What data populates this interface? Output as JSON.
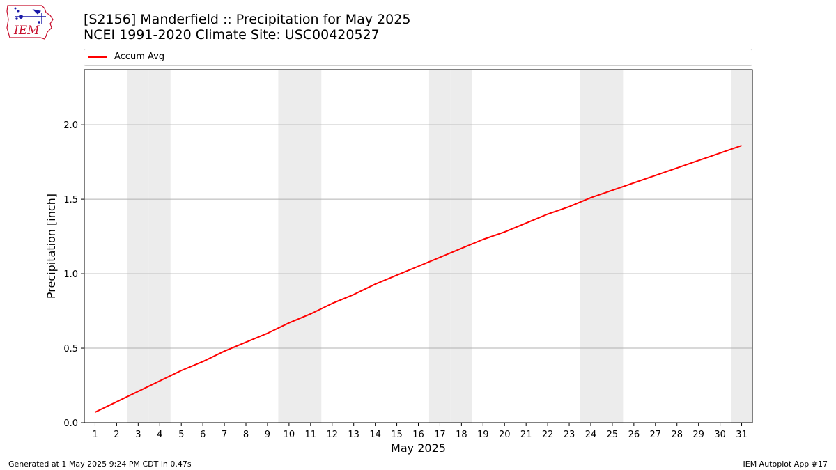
{
  "header": {
    "title_line1": "[S2156] Manderfield :: Precipitation for May 2025",
    "title_line2": "NCEI 1991-2020 Climate Site: USC00420527",
    "logo_text": "IEM"
  },
  "footer": {
    "left": "Generated at 1 May 2025 9:24 PM CDT in 0.47s",
    "right": "IEM Autoplot App #17"
  },
  "chart_data": {
    "type": "line",
    "xlabel": "May 2025",
    "ylabel": "Precipitation [inch]",
    "x": [
      1,
      2,
      3,
      4,
      5,
      6,
      7,
      8,
      9,
      10,
      11,
      12,
      13,
      14,
      15,
      16,
      17,
      18,
      19,
      20,
      21,
      22,
      23,
      24,
      25,
      26,
      27,
      28,
      29,
      30,
      31
    ],
    "xlim": [
      0.5,
      31.5
    ],
    "ylim": [
      0,
      2.37
    ],
    "yticks": [
      0.0,
      0.5,
      1.0,
      1.5,
      2.0
    ],
    "ytick_labels": [
      "0.0",
      "0.5",
      "1.0",
      "1.5",
      "2.0"
    ],
    "xtick_labels": [
      "1",
      "2",
      "3",
      "4",
      "5",
      "6",
      "7",
      "8",
      "9",
      "10",
      "11",
      "12",
      "13",
      "14",
      "15",
      "16",
      "17",
      "18",
      "19",
      "20",
      "21",
      "22",
      "23",
      "24",
      "25",
      "26",
      "27",
      "28",
      "29",
      "30",
      "31"
    ],
    "grid": "horizontal",
    "legend": "top",
    "weekend_days": [
      3,
      4,
      10,
      11,
      17,
      18,
      24,
      25,
      31
    ],
    "weekend_color": "#ececec",
    "series": [
      {
        "name": "Accum Avg",
        "color": "#ff0000",
        "values": [
          0.07,
          0.14,
          0.21,
          0.28,
          0.35,
          0.41,
          0.48,
          0.54,
          0.6,
          0.67,
          0.73,
          0.8,
          0.86,
          0.93,
          0.99,
          1.05,
          1.11,
          1.17,
          1.23,
          1.28,
          1.34,
          1.4,
          1.45,
          1.51,
          1.56,
          1.61,
          1.66,
          1.71,
          1.76,
          1.81,
          1.86
        ]
      }
    ]
  }
}
